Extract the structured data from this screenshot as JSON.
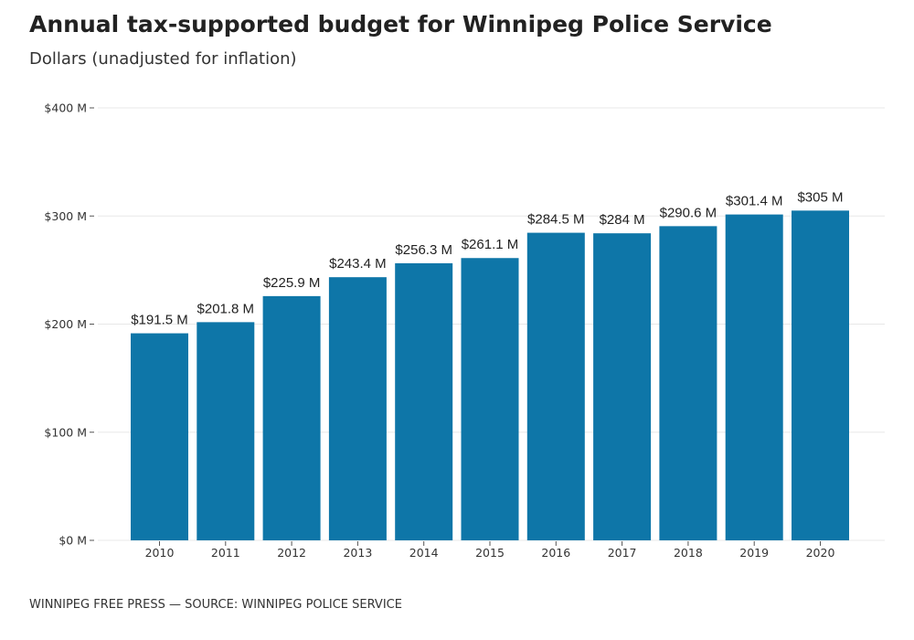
{
  "header": {
    "title": "Annual tax-supported budget for Winnipeg Police Service",
    "subtitle": "Dollars (unadjusted for inflation)"
  },
  "footer": {
    "credit": "WINNIPEG FREE PRESS — SOURCE: WINNIPEG POLICE SERVICE"
  },
  "colors": {
    "bar": "#0e76a8",
    "grid": "#e8e8e8",
    "tick": "#555555"
  },
  "chart_data": {
    "type": "bar",
    "title": "Annual tax-supported budget for Winnipeg Police Service",
    "subtitle": "Dollars (unadjusted for inflation)",
    "xlabel": "",
    "ylabel": "",
    "categories": [
      "2010",
      "2011",
      "2012",
      "2013",
      "2014",
      "2015",
      "2016",
      "2017",
      "2018",
      "2019",
      "2020"
    ],
    "values": [
      191.5,
      201.8,
      225.9,
      243.4,
      256.3,
      261.1,
      284.5,
      284,
      290.6,
      301.4,
      305
    ],
    "data_labels": [
      "$191.5 M",
      "$201.8 M",
      "$225.9 M",
      "$243.4 M",
      "$256.3 M",
      "$261.1 M",
      "$284.5 M",
      "$284 M",
      "$290.6 M",
      "$301.4 M",
      "$305 M"
    ],
    "ylim": [
      0,
      400
    ],
    "yticks": [
      0,
      100,
      200,
      300,
      400
    ],
    "ytick_labels": [
      "$0 M",
      "$100 M",
      "$200 M",
      "$300 M",
      "$400 M"
    ],
    "grid": true,
    "legend": "none"
  }
}
